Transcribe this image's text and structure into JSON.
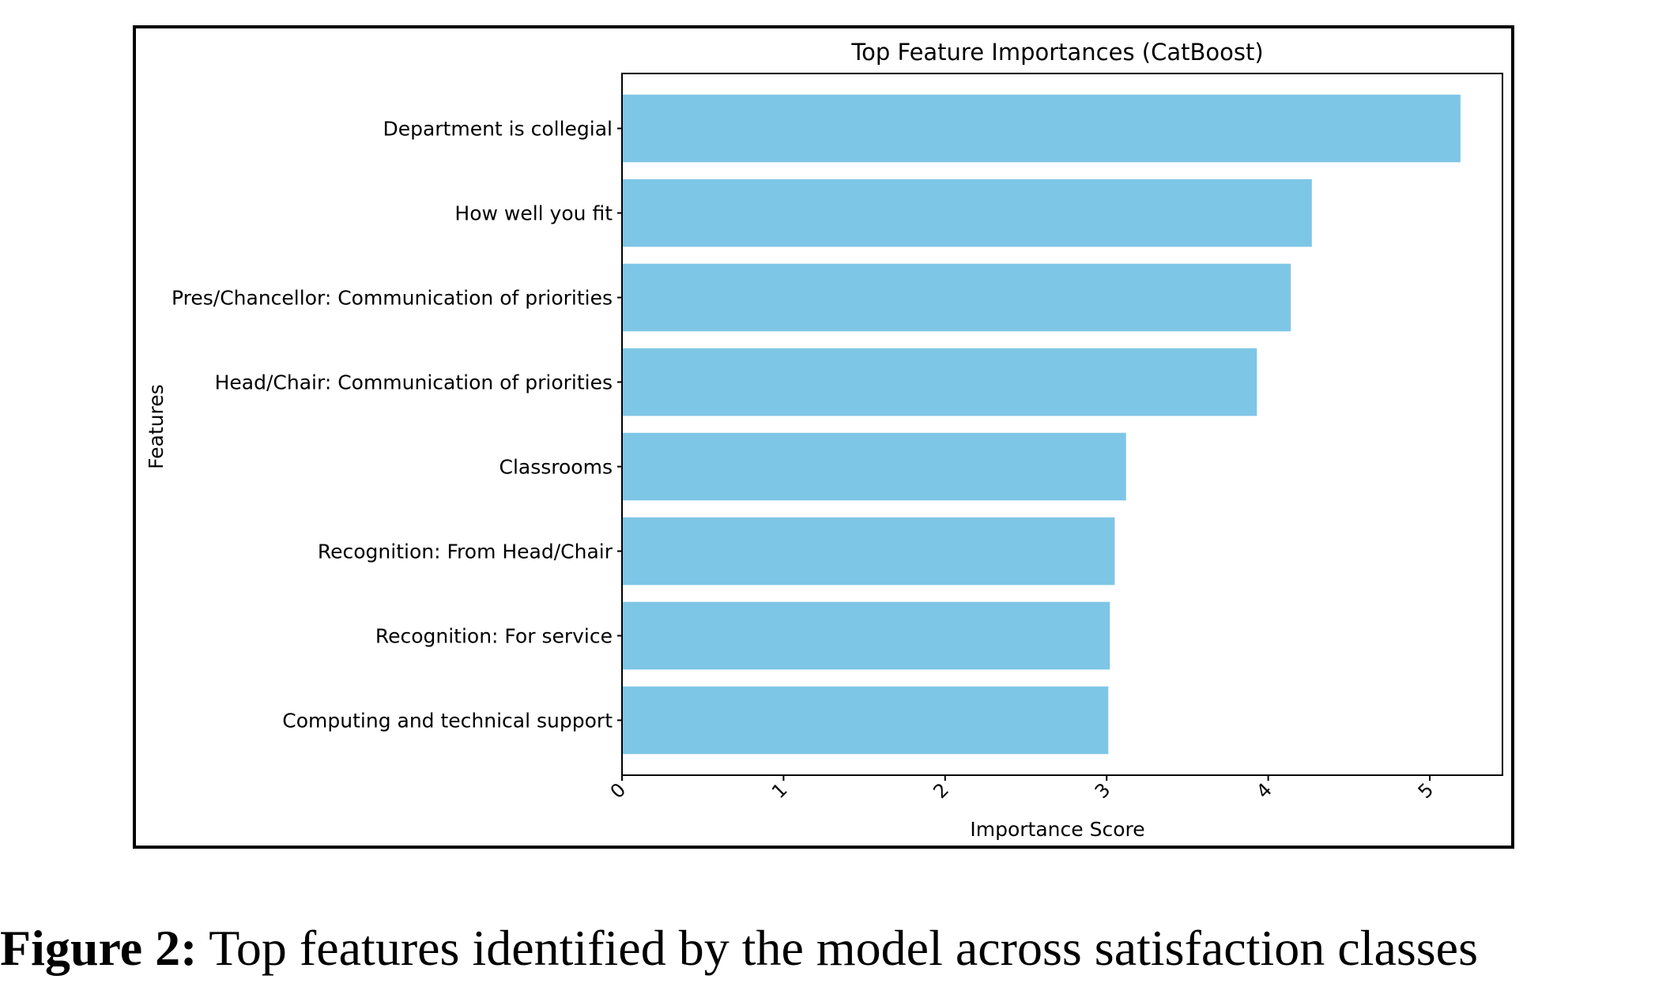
{
  "chart_data": {
    "type": "bar",
    "orientation": "horizontal",
    "title": "Top Feature Importances (CatBoost)",
    "xlabel": "Importance Score",
    "ylabel": "Features",
    "categories": [
      "Department is collegial",
      "How well you fit",
      "Pres/Chancellor: Communication of priorities",
      "Head/Chair: Communication of priorities",
      "Classrooms",
      "Recognition: From Head/Chair",
      "Recognition: For service",
      "Computing and technical support"
    ],
    "values": [
      5.19,
      4.27,
      4.14,
      3.93,
      3.12,
      3.05,
      3.02,
      3.01
    ],
    "xlim": [
      0,
      5.45
    ],
    "xticks": [
      "0",
      "1",
      "2",
      "3",
      "4",
      "5"
    ],
    "bar_color": "#7ec6e6",
    "grid": false,
    "legend": "none"
  },
  "caption": {
    "label": "Figure 2:",
    "text": " Top features identified by the model across satisfaction classes"
  }
}
